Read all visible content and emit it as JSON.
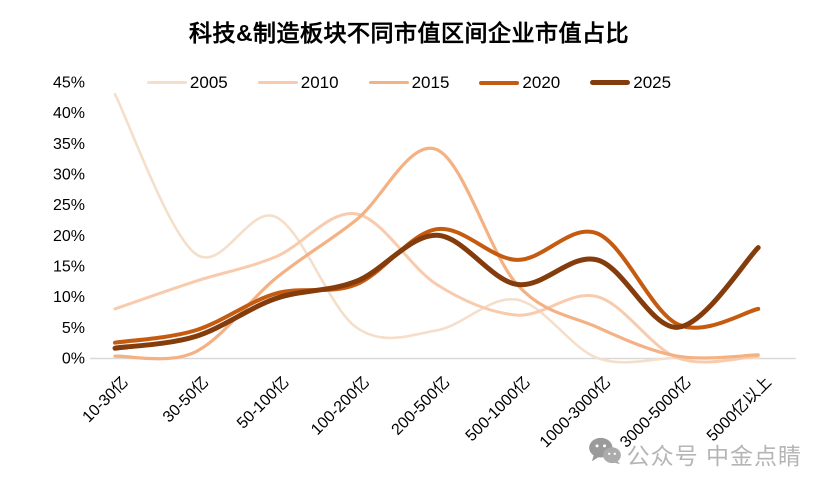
{
  "title": "科技&制造板块不同市值区间企业市值占比",
  "legend": {
    "entries": [
      "2005",
      "2010",
      "2015",
      "2020",
      "2025"
    ]
  },
  "watermark": {
    "icon": "wechat-icon",
    "text": "公众号 中金点睛",
    "color": "#b5b5b5"
  },
  "colors": {
    "axis_line": "#d9d9d9",
    "text": "#000000",
    "series_2005": "#f5dfca",
    "series_2010": "#f8cbad",
    "series_2015": "#f4b183",
    "series_2020": "#c55a11",
    "series_2025": "#843c0c"
  },
  "chart_data": {
    "type": "line",
    "title": "科技&制造板块不同市值区间企业市值占比",
    "categories": [
      "10-30亿",
      "30-50亿",
      "50-100亿",
      "100-200亿",
      "200-500亿",
      "500-1000亿",
      "1000-3000亿",
      "3000-5000亿",
      "5000亿以上"
    ],
    "series": [
      {
        "name": "2005",
        "color": "#f5dfca",
        "width": 2.6,
        "values": [
          43,
          17,
          23,
          5,
          4.5,
          9.5,
          0,
          0,
          0
        ]
      },
      {
        "name": "2010",
        "color": "#f8cbad",
        "width": 3,
        "values": [
          8,
          12.5,
          16.5,
          23.5,
          12,
          7,
          10,
          0,
          0.3
        ]
      },
      {
        "name": "2015",
        "color": "#f4b183",
        "width": 3.2,
        "values": [
          0.3,
          1,
          13,
          22.5,
          34,
          12,
          5,
          0.3,
          0.5
        ]
      },
      {
        "name": "2020",
        "color": "#c55a11",
        "width": 4,
        "values": [
          2.5,
          4.5,
          10.5,
          12,
          21,
          16,
          20.3,
          5.5,
          8
        ]
      },
      {
        "name": "2025",
        "color": "#843c0c",
        "width": 5,
        "values": [
          1.6,
          3.5,
          9.7,
          12.5,
          20,
          12,
          16,
          5,
          18
        ]
      }
    ],
    "xlabel": "",
    "ylabel": "",
    "ylim": [
      0,
      45
    ],
    "ytick_step": 5,
    "ytick_suffix": "%",
    "grid": false,
    "legend_position": "top",
    "curve": "smooth"
  }
}
